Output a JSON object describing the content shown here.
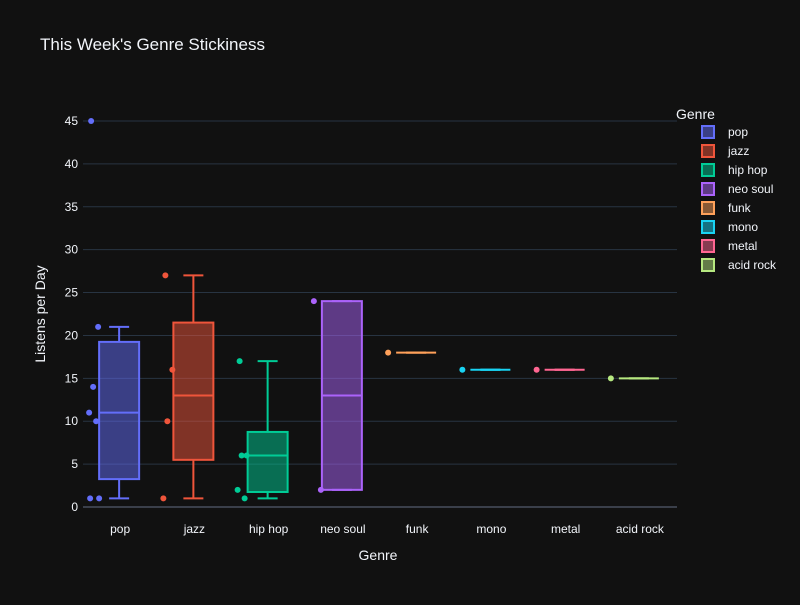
{
  "chart_data": {
    "type": "box",
    "title": "This Week's Genre Stickiness",
    "xlabel": "Genre",
    "ylabel": "Listens per Day",
    "ylim": [
      0,
      45
    ],
    "yticks": [
      0,
      5,
      10,
      15,
      20,
      25,
      30,
      35,
      40,
      45
    ],
    "grid": true,
    "legend": {
      "title": "Genre",
      "placement": "top-right"
    },
    "categories": [
      "pop",
      "jazz",
      "hip hop",
      "neo soul",
      "funk",
      "mono",
      "metal",
      "acid rock"
    ],
    "series": [
      {
        "name": "pop",
        "color": "#636efa",
        "points": [
          45,
          21,
          14,
          11,
          10,
          1,
          1
        ],
        "min": 1,
        "q1": 3.25,
        "median": 11,
        "q3": 19.25,
        "max": 21
      },
      {
        "name": "jazz",
        "color": "#ef553b",
        "points": [
          27,
          16,
          10,
          1
        ],
        "min": 1,
        "q1": 5.5,
        "median": 13,
        "q3": 21.5,
        "max": 27
      },
      {
        "name": "hip hop",
        "color": "#00cc96",
        "points": [
          17,
          6,
          6,
          2,
          1
        ],
        "min": 1,
        "q1": 1.75,
        "median": 6,
        "q3": 8.75,
        "max": 17
      },
      {
        "name": "neo soul",
        "color": "#ab63fa",
        "points": [
          24,
          2
        ],
        "min": 2,
        "q1": 2,
        "median": 13,
        "q3": 24,
        "max": 24
      },
      {
        "name": "funk",
        "color": "#ffa15a",
        "points": [
          18
        ],
        "min": 18,
        "q1": 18,
        "median": 18,
        "q3": 18,
        "max": 18
      },
      {
        "name": "mono",
        "color": "#19d3f3",
        "points": [
          16
        ],
        "min": 16,
        "q1": 16,
        "median": 16,
        "q3": 16,
        "max": 16
      },
      {
        "name": "metal",
        "color": "#ff6692",
        "points": [
          16
        ],
        "min": 16,
        "q1": 16,
        "median": 16,
        "q3": 16,
        "max": 16
      },
      {
        "name": "acid rock",
        "color": "#b6e880",
        "points": [
          15
        ],
        "min": 15,
        "q1": 15,
        "median": 15,
        "q3": 15,
        "max": 15
      }
    ]
  }
}
